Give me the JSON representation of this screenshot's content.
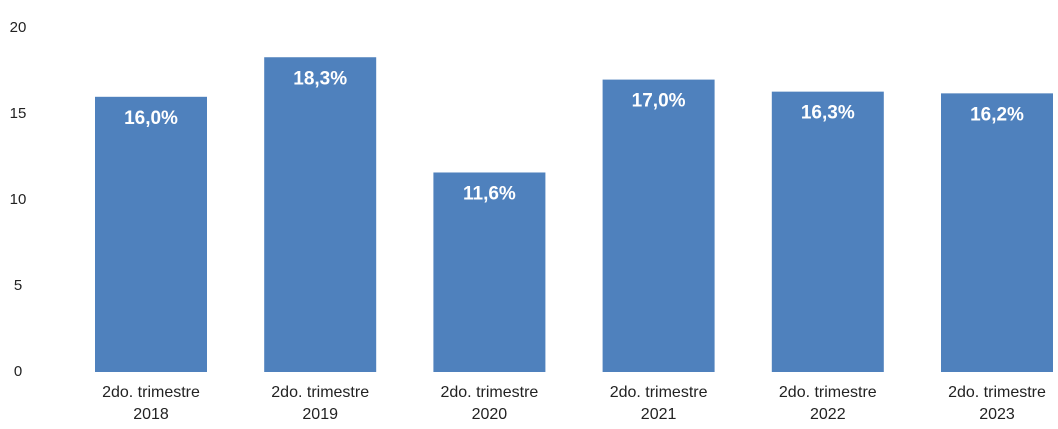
{
  "chart_data": {
    "type": "bar",
    "categories": [
      "2do. trimestre 2018",
      "2do. trimestre 2019",
      "2do. trimestre 2020",
      "2do. trimestre 2021",
      "2do. trimestre 2022",
      "2do. trimestre 2023"
    ],
    "values": [
      16.0,
      18.3,
      11.6,
      17.0,
      16.3,
      16.2
    ],
    "value_labels": [
      "16,0%",
      "18,3%",
      "11,6%",
      "17,0%",
      "16,3%",
      "16,2%"
    ],
    "color": "#4f81bd",
    "ylim": [
      0,
      20
    ],
    "yticks": [
      0,
      5,
      10,
      15,
      20
    ],
    "grid": false
  }
}
